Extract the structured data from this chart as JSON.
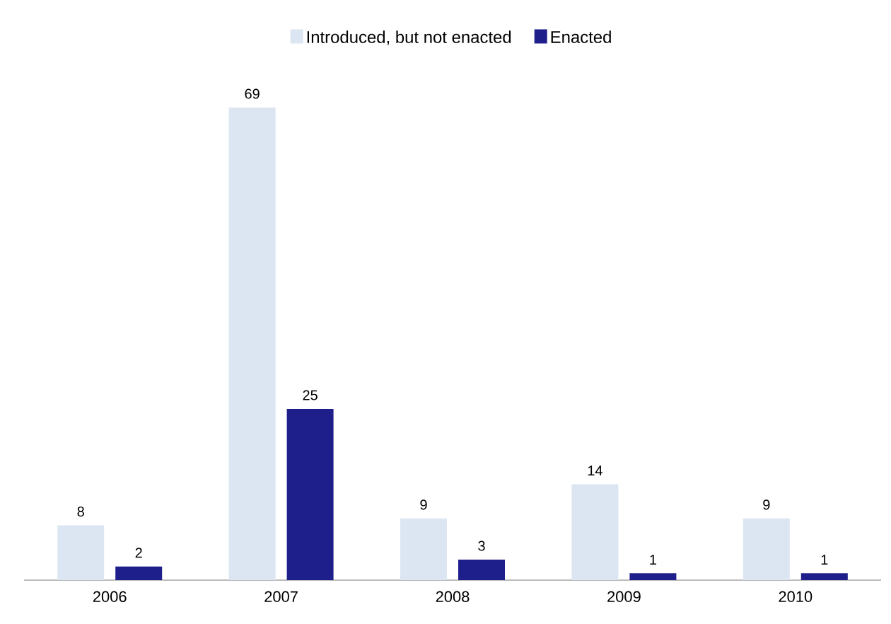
{
  "chart_data": {
    "type": "bar",
    "categories": [
      "2006",
      "2007",
      "2008",
      "2009",
      "2010"
    ],
    "series": [
      {
        "name": "Introduced, but not enacted",
        "color": "#dce6f2",
        "values": [
          8,
          69,
          9,
          14,
          9
        ]
      },
      {
        "name": "Enacted",
        "color": "#1f1f8c",
        "values": [
          2,
          25,
          3,
          1,
          1
        ]
      }
    ],
    "data_labels": true,
    "legend": "top"
  }
}
